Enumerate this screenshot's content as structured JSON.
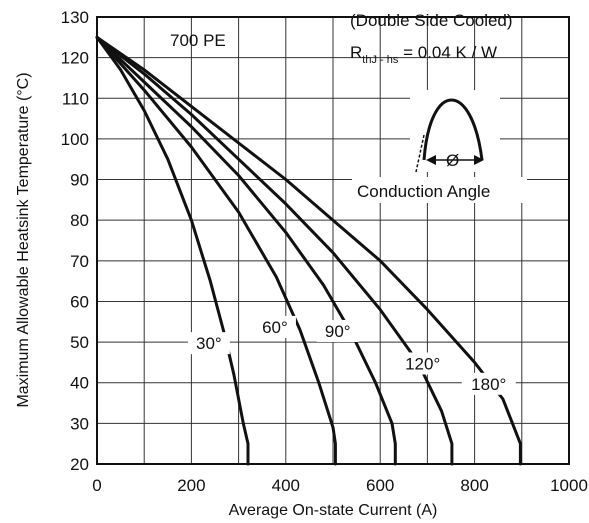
{
  "chart_data": {
    "type": "line",
    "title": "700 PE",
    "xlabel": "Average On-state Current (A)",
    "ylabel": "Maximum Allowable Heatsink Temperature (°C)",
    "xlim": [
      0,
      1000
    ],
    "ylim": [
      20,
      130
    ],
    "x_ticks": [
      "0",
      "200",
      "400",
      "600",
      "800",
      "1000"
    ],
    "y_ticks": [
      "20",
      "30",
      "40",
      "50",
      "60",
      "70",
      "80",
      "90",
      "100",
      "110",
      "120",
      "130"
    ],
    "grid": true,
    "annotations": {
      "cooling": "(Double Side Cooled)",
      "rth_prefix": "R",
      "rth_sub": "thJ - hs",
      "rth_value": " = 0.04 K / W",
      "conduction": "Conduction Angle",
      "phi": "Ø"
    },
    "series": [
      {
        "name": "30°",
        "values": [
          [
            0,
            125
          ],
          [
            50,
            117
          ],
          [
            100,
            107
          ],
          [
            150,
            95
          ],
          [
            200,
            80
          ],
          [
            240,
            65
          ],
          [
            270,
            52
          ],
          [
            290,
            42
          ],
          [
            310,
            30
          ],
          [
            320,
            25
          ],
          [
            320,
            20
          ]
        ]
      },
      {
        "name": "60°",
        "values": [
          [
            0,
            125
          ],
          [
            100,
            112
          ],
          [
            200,
            98
          ],
          [
            300,
            82
          ],
          [
            380,
            66
          ],
          [
            430,
            53
          ],
          [
            470,
            40
          ],
          [
            500,
            29
          ],
          [
            505,
            25
          ],
          [
            505,
            20
          ]
        ]
      },
      {
        "name": "90°",
        "values": [
          [
            0,
            125
          ],
          [
            100,
            114
          ],
          [
            200,
            103
          ],
          [
            300,
            91
          ],
          [
            400,
            77
          ],
          [
            480,
            64
          ],
          [
            540,
            52
          ],
          [
            590,
            40
          ],
          [
            625,
            30
          ],
          [
            632,
            25
          ],
          [
            632,
            20
          ]
        ]
      },
      {
        "name": "120°",
        "values": [
          [
            0,
            125
          ],
          [
            100,
            116
          ],
          [
            200,
            106
          ],
          [
            300,
            95
          ],
          [
            400,
            84
          ],
          [
            500,
            72
          ],
          [
            600,
            58
          ],
          [
            680,
            45
          ],
          [
            730,
            33
          ],
          [
            752,
            25
          ],
          [
            752,
            20
          ]
        ]
      },
      {
        "name": "180°",
        "values": [
          [
            0,
            125
          ],
          [
            100,
            117
          ],
          [
            200,
            108
          ],
          [
            300,
            99
          ],
          [
            400,
            90
          ],
          [
            500,
            80
          ],
          [
            600,
            70
          ],
          [
            700,
            58
          ],
          [
            800,
            45
          ],
          [
            860,
            36
          ],
          [
            897,
            25
          ],
          [
            897,
            20
          ]
        ]
      }
    ]
  }
}
